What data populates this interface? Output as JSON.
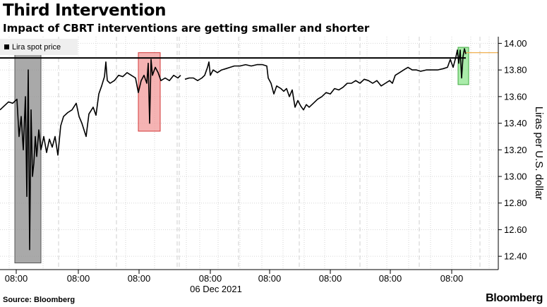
{
  "chart_data": {
    "type": "line",
    "title": "Third Intervention",
    "subtitle": "Impact of CBRT interventions are getting smaller and shorter",
    "ylabel": "Liras per U.S. dollar",
    "ylim": [
      12.3,
      14.05
    ],
    "y_ticks": [
      "14.00",
      "13.80",
      "13.60",
      "13.40",
      "13.20",
      "13.00",
      "12.80",
      "12.60",
      "12.40"
    ],
    "x_ticks": [
      "08:00",
      "08:00",
      "08:00",
      "08:00",
      "08:00",
      "08:00",
      "08:00",
      "08:00"
    ],
    "x_secondary_label": "06 Dec 2021",
    "grid": true,
    "legend_position": "top-left",
    "series": [
      {
        "name": "Lira spot price",
        "color": "#000000",
        "points": [
          [
            0,
            13.5
          ],
          [
            6,
            13.53
          ],
          [
            12,
            13.56
          ],
          [
            18,
            13.55
          ],
          [
            24,
            13.58
          ],
          [
            27,
            13.3
          ],
          [
            30,
            13.45
          ],
          [
            33,
            13.2
          ],
          [
            36,
            13.6
          ],
          [
            38,
            12.85
          ],
          [
            40,
            13.8
          ],
          [
            42,
            12.45
          ],
          [
            44,
            13.5
          ],
          [
            46,
            13.0
          ],
          [
            48,
            13.1
          ],
          [
            50,
            13.3
          ],
          [
            52,
            13.15
          ],
          [
            55,
            13.35
          ],
          [
            58,
            13.2
          ],
          [
            62,
            13.3
          ],
          [
            66,
            13.18
          ],
          [
            70,
            13.28
          ],
          [
            74,
            13.22
          ],
          [
            78,
            13.3
          ],
          [
            82,
            13.16
          ],
          [
            86,
            13.38
          ],
          [
            90,
            13.45
          ],
          [
            96,
            13.48
          ],
          [
            102,
            13.5
          ],
          [
            108,
            13.55
          ],
          [
            112,
            13.45
          ],
          [
            116,
            13.4
          ],
          [
            122,
            13.3
          ],
          [
            126,
            13.47
          ],
          [
            132,
            13.52
          ],
          [
            136,
            13.46
          ],
          [
            140,
            13.62
          ],
          [
            144,
            13.68
          ],
          [
            148,
            13.75
          ],
          [
            150,
            13.86
          ],
          [
            152,
            13.72
          ],
          [
            156,
            13.7
          ],
          [
            162,
            13.72
          ],
          [
            168,
            13.76
          ],
          [
            174,
            13.75
          ],
          [
            180,
            13.78
          ],
          [
            186,
            13.76
          ],
          [
            192,
            13.74
          ],
          [
            196,
            13.63
          ],
          [
            200,
            13.72
          ],
          [
            204,
            13.76
          ],
          [
            208,
            13.7
          ],
          [
            210,
            13.85
          ],
          [
            212,
            13.4
          ],
          [
            214,
            13.88
          ],
          [
            216,
            13.76
          ],
          [
            220,
            13.82
          ],
          [
            224,
            13.78
          ],
          [
            228,
            13.72
          ],
          [
            234,
            13.74
          ],
          [
            240,
            13.72
          ],
          [
            246,
            13.76
          ],
          [
            252,
            13.74
          ],
          [
            256,
            13.76
          ],
          [
            262,
            13.73
          ],
          [
            268,
            13.74
          ],
          [
            274,
            13.74
          ],
          [
            280,
            13.72
          ],
          [
            286,
            13.74
          ],
          [
            290,
            13.76
          ],
          [
            294,
            13.82
          ],
          [
            296,
            13.86
          ],
          [
            298,
            13.76
          ],
          [
            302,
            13.8
          ],
          [
            308,
            13.78
          ],
          [
            314,
            13.8
          ],
          [
            320,
            13.81
          ],
          [
            326,
            13.82
          ],
          [
            332,
            13.83
          ],
          [
            340,
            13.83
          ],
          [
            348,
            13.84
          ],
          [
            356,
            13.83
          ],
          [
            364,
            13.84
          ],
          [
            372,
            13.84
          ],
          [
            378,
            13.83
          ],
          [
            380,
            13.74
          ],
          [
            384,
            13.7
          ],
          [
            388,
            13.62
          ],
          [
            392,
            13.68
          ],
          [
            398,
            13.66
          ],
          [
            402,
            13.64
          ],
          [
            406,
            13.66
          ],
          [
            410,
            13.6
          ],
          [
            414,
            13.65
          ],
          [
            418,
            13.52
          ],
          [
            422,
            13.57
          ],
          [
            426,
            13.53
          ],
          [
            430,
            13.5
          ],
          [
            434,
            13.54
          ],
          [
            438,
            13.52
          ],
          [
            444,
            13.55
          ],
          [
            450,
            13.58
          ],
          [
            456,
            13.6
          ],
          [
            462,
            13.63
          ],
          [
            468,
            13.62
          ],
          [
            474,
            13.66
          ],
          [
            480,
            13.65
          ],
          [
            486,
            13.67
          ],
          [
            492,
            13.7
          ],
          [
            498,
            13.7
          ],
          [
            504,
            13.72
          ],
          [
            510,
            13.7
          ],
          [
            516,
            13.73
          ],
          [
            522,
            13.72
          ],
          [
            528,
            13.7
          ],
          [
            534,
            13.72
          ],
          [
            540,
            13.68
          ],
          [
            546,
            13.7
          ],
          [
            552,
            13.72
          ],
          [
            556,
            13.7
          ],
          [
            560,
            13.76
          ],
          [
            566,
            13.78
          ],
          [
            572,
            13.8
          ],
          [
            578,
            13.82
          ],
          [
            584,
            13.8
          ],
          [
            590,
            13.8
          ],
          [
            596,
            13.79
          ],
          [
            604,
            13.8
          ],
          [
            612,
            13.8
          ],
          [
            620,
            13.8
          ],
          [
            628,
            13.81
          ],
          [
            634,
            13.82
          ],
          [
            638,
            13.88
          ],
          [
            642,
            13.82
          ],
          [
            646,
            13.9
          ],
          [
            648,
            13.95
          ],
          [
            650,
            13.85
          ],
          [
            652,
            13.95
          ],
          [
            654,
            13.74
          ],
          [
            656,
            13.9
          ],
          [
            658,
            13.96
          ],
          [
            660,
            13.92
          ]
        ]
      }
    ],
    "reference_lines": [
      {
        "y": 13.89,
        "color": "#000000",
        "from": 0,
        "to": 660
      },
      {
        "y": 13.93,
        "color": "#f0b050",
        "from": 658,
        "to": 706
      }
    ],
    "highlight_boxes": [
      {
        "from": 21,
        "to": 58,
        "ymin": 12.35,
        "ymax": 13.92,
        "fill": "#8c8c8c",
        "stroke": "#555555"
      },
      {
        "from": 196,
        "to": 227,
        "ymin": 13.34,
        "ymax": 13.93,
        "fill": "#f29a9a",
        "stroke": "#d33a3a"
      },
      {
        "from": 649,
        "to": 664,
        "ymin": 13.69,
        "ymax": 13.97,
        "fill": "#8ee58e",
        "stroke": "#3fa83f"
      }
    ]
  },
  "legend": {
    "label": "Lira spot price",
    "swatch_color": "#000000"
  },
  "footer": {
    "source": "Source: Bloomberg",
    "brand": "Bloomberg"
  }
}
